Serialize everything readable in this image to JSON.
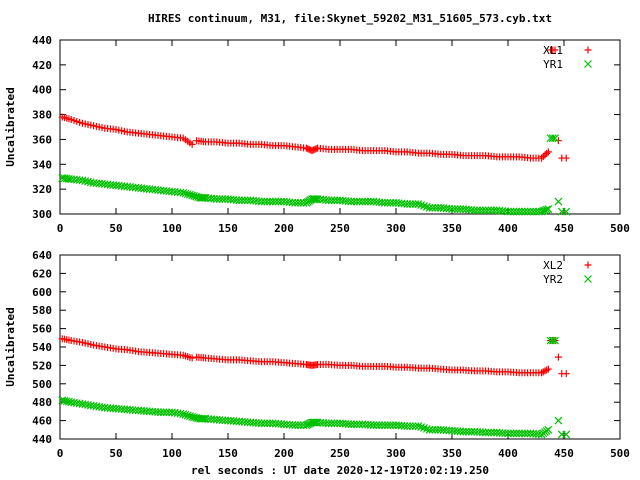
{
  "chart_data": [
    {
      "type": "scatter",
      "title": "HIRES continuum, M31, file:Skynet_59202_M31_51605_573.cyb.txt",
      "xlabel": "",
      "ylabel": "Uncalibrated",
      "xlim": [
        0,
        500
      ],
      "ylim": [
        300,
        440
      ],
      "xticks": [
        "0",
        "50",
        "100",
        "150",
        "200",
        "250",
        "300",
        "350",
        "400",
        "450",
        "500"
      ],
      "yticks": [
        "300",
        "320",
        "340",
        "360",
        "380",
        "400",
        "420",
        "440"
      ],
      "legend_position": "top-right",
      "grid": false,
      "series": [
        {
          "name": "XL1",
          "marker": "+",
          "color": "#ff0000",
          "x": [
            2,
            10,
            20,
            30,
            40,
            50,
            60,
            70,
            80,
            90,
            100,
            110,
            118,
            122,
            130,
            140,
            150,
            160,
            170,
            180,
            190,
            200,
            210,
            220,
            225,
            230,
            240,
            250,
            260,
            270,
            280,
            290,
            300,
            310,
            320,
            330,
            340,
            350,
            360,
            370,
            380,
            390,
            400,
            410,
            420,
            430,
            436,
            438,
            440,
            442,
            445,
            448,
            452
          ],
          "y": [
            378,
            376,
            373,
            371,
            369,
            368,
            366,
            365,
            364,
            363,
            362,
            361,
            356,
            359,
            358,
            358,
            357,
            357,
            356,
            356,
            355,
            355,
            354,
            353,
            351,
            353,
            352,
            352,
            352,
            351,
            351,
            351,
            350,
            350,
            349,
            349,
            348,
            348,
            347,
            347,
            347,
            346,
            346,
            346,
            345,
            345,
            350,
            432,
            432,
            432,
            359,
            345,
            345
          ]
        },
        {
          "name": "YR1",
          "marker": "x",
          "color": "#00c000",
          "x": [
            2,
            10,
            20,
            30,
            40,
            50,
            60,
            70,
            80,
            90,
            100,
            110,
            118,
            125,
            130,
            140,
            150,
            160,
            170,
            180,
            190,
            200,
            210,
            220,
            225,
            230,
            240,
            250,
            260,
            270,
            280,
            290,
            300,
            310,
            320,
            330,
            340,
            350,
            360,
            370,
            380,
            390,
            400,
            410,
            420,
            430,
            436,
            438,
            440,
            442,
            445,
            448,
            452
          ],
          "y": [
            329,
            328,
            327,
            325,
            324,
            323,
            322,
            321,
            320,
            319,
            318,
            317,
            315,
            313,
            313,
            312,
            312,
            311,
            311,
            310,
            310,
            310,
            309,
            309,
            312,
            312,
            311,
            311,
            310,
            310,
            310,
            309,
            309,
            308,
            308,
            305,
            305,
            304,
            304,
            303,
            303,
            303,
            302,
            302,
            302,
            302,
            304,
            361,
            361,
            361,
            310,
            302,
            302
          ]
        }
      ]
    },
    {
      "type": "scatter",
      "title": "",
      "xlabel": "rel seconds : UT date 2020-12-19T20:02:19.250",
      "ylabel": "Uncalibrated",
      "xlim": [
        0,
        500
      ],
      "ylim": [
        440,
        640
      ],
      "xticks": [
        "0",
        "50",
        "100",
        "150",
        "200",
        "250",
        "300",
        "350",
        "400",
        "450",
        "500"
      ],
      "yticks": [
        "440",
        "460",
        "480",
        "500",
        "520",
        "540",
        "560",
        "580",
        "600",
        "620",
        "640"
      ],
      "legend_position": "top-right",
      "grid": false,
      "series": [
        {
          "name": "XL2",
          "marker": "+",
          "color": "#ff0000",
          "x": [
            2,
            10,
            20,
            30,
            40,
            50,
            60,
            70,
            80,
            90,
            100,
            110,
            118,
            122,
            130,
            140,
            150,
            160,
            170,
            180,
            190,
            200,
            210,
            220,
            225,
            230,
            240,
            250,
            260,
            270,
            280,
            290,
            300,
            310,
            320,
            330,
            340,
            350,
            360,
            370,
            380,
            390,
            400,
            410,
            420,
            430,
            436,
            438,
            440,
            442,
            445,
            448,
            452
          ],
          "y": [
            549,
            547,
            545,
            542,
            540,
            538,
            537,
            535,
            534,
            533,
            532,
            531,
            528,
            529,
            528,
            527,
            526,
            526,
            525,
            524,
            524,
            523,
            522,
            521,
            520,
            521,
            521,
            520,
            520,
            519,
            519,
            519,
            518,
            518,
            517,
            517,
            516,
            515,
            515,
            514,
            514,
            513,
            513,
            512,
            512,
            512,
            516,
            547,
            547,
            547,
            529,
            511,
            511
          ]
        },
        {
          "name": "YR2",
          "marker": "x",
          "color": "#00c000",
          "x": [
            2,
            10,
            20,
            30,
            40,
            50,
            60,
            70,
            80,
            90,
            100,
            110,
            118,
            125,
            130,
            140,
            150,
            160,
            170,
            180,
            190,
            200,
            210,
            220,
            225,
            230,
            240,
            250,
            260,
            270,
            280,
            290,
            300,
            310,
            320,
            330,
            340,
            350,
            360,
            370,
            380,
            390,
            400,
            410,
            420,
            430,
            436,
            438,
            440,
            442,
            445,
            448,
            452
          ],
          "y": [
            482,
            480,
            478,
            476,
            474,
            473,
            472,
            471,
            470,
            469,
            469,
            467,
            464,
            462,
            462,
            461,
            460,
            459,
            458,
            457,
            457,
            456,
            455,
            455,
            458,
            458,
            457,
            457,
            456,
            456,
            455,
            455,
            455,
            454,
            454,
            450,
            450,
            449,
            448,
            448,
            447,
            447,
            446,
            446,
            446,
            445,
            450,
            547,
            547,
            547,
            460,
            445,
            445
          ]
        }
      ]
    }
  ]
}
